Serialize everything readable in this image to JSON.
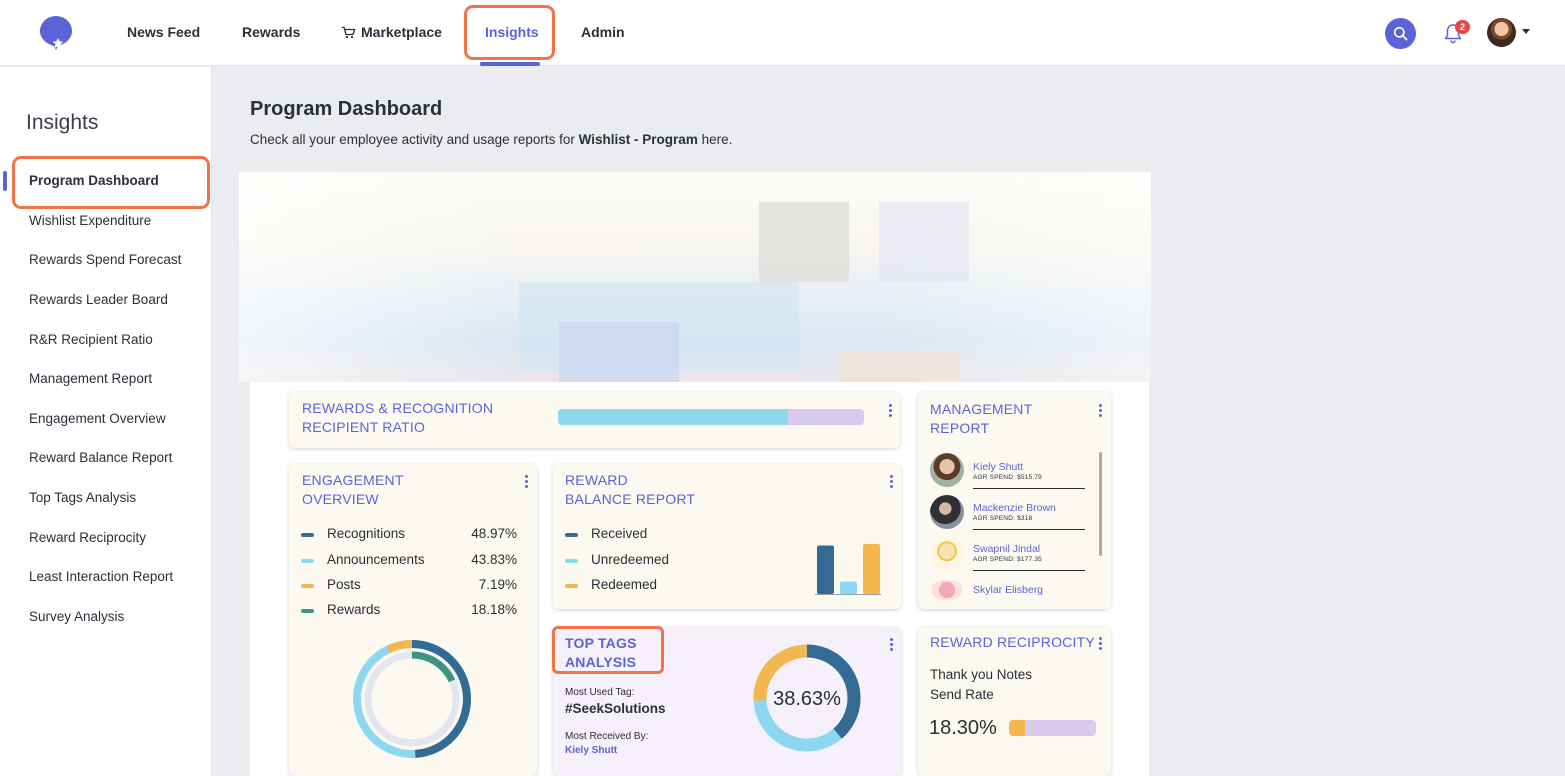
{
  "nav": {
    "items": [
      {
        "label": "News Feed"
      },
      {
        "label": "Rewards"
      },
      {
        "label": "Marketplace"
      },
      {
        "label": "Insights"
      },
      {
        "label": "Admin"
      }
    ],
    "notification_count": "2",
    "accent_color": "#5b63d9",
    "highlight_color": "#f0734a"
  },
  "sidebar": {
    "title": "Insights",
    "items": [
      {
        "label": "Program Dashboard"
      },
      {
        "label": "Wishlist Expenditure"
      },
      {
        "label": "Rewards Spend Forecast"
      },
      {
        "label": "Rewards Leader Board"
      },
      {
        "label": "R&R Recipient Ratio"
      },
      {
        "label": "Management Report"
      },
      {
        "label": "Engagement Overview"
      },
      {
        "label": "Reward Balance Report"
      },
      {
        "label": "Top Tags Analysis"
      },
      {
        "label": "Reward Reciprocity"
      },
      {
        "label": "Least Interaction Report"
      },
      {
        "label": "Survey Analysis"
      }
    ]
  },
  "main": {
    "title": "Program Dashboard",
    "subtitle_before": "Check all your employee activity and usage reports for ",
    "subtitle_program": "Wishlist - Program",
    "subtitle_after": " here."
  },
  "cards": {
    "rr_ratio": {
      "title_line1": "REWARDS & RECOGNITION",
      "title_line2": "RECIPIENT RATIO",
      "ratio_first": 0.75
    },
    "management": {
      "title_line1": "MANAGEMENT",
      "title_line2": "REPORT",
      "people": [
        {
          "name": "Kiely Shutt",
          "spend": "AGR SPEND: $515.79"
        },
        {
          "name": "Mackenzie Brown",
          "spend": "AGR SPEND: $318"
        },
        {
          "name": "Swapnil Jindal",
          "spend": "AGR SPEND: $177.35"
        },
        {
          "name": "Skylar Elisberg",
          "spend": ""
        }
      ]
    },
    "engagement": {
      "title_line1": "ENGAGEMENT",
      "title_line2": "OVERVIEW",
      "legend": [
        {
          "label": "Recognitions",
          "value": "48.97%",
          "color": "#336b94"
        },
        {
          "label": "Announcements",
          "value": "43.83%",
          "color": "#8dd8f0"
        },
        {
          "label": "Posts",
          "value": "7.19%",
          "color": "#f4b74f"
        },
        {
          "label": "Rewards",
          "value": "18.18%",
          "color": "#3b9580"
        }
      ]
    },
    "balance": {
      "title_line1": "REWARD",
      "title_line2": "BALANCE REPORT",
      "legend": [
        {
          "label": "Received",
          "color": "#336b94"
        },
        {
          "label": "Unredeemed",
          "color": "#8dd8f0"
        },
        {
          "label": "Redeemed",
          "color": "#f4b74f"
        }
      ],
      "bar_levels": [
        0.97,
        0.25,
        1.0
      ]
    },
    "top_tags": {
      "title_line1": "TOP TAGS",
      "title_line2": "ANALYSIS",
      "most_used_label": "Most Used Tag:",
      "most_used_tag": "#SeekSolutions",
      "most_received_label": "Most Received By:",
      "most_received_name": "Kiely Shutt",
      "donut_value": "38.63%",
      "donut_fraction": 0.3863
    },
    "reciprocity": {
      "title": "REWARD RECIPROCITY",
      "line1": "Thank you Notes",
      "line2": "Send Rate",
      "value": "18.30%",
      "fraction": 0.183
    }
  }
}
